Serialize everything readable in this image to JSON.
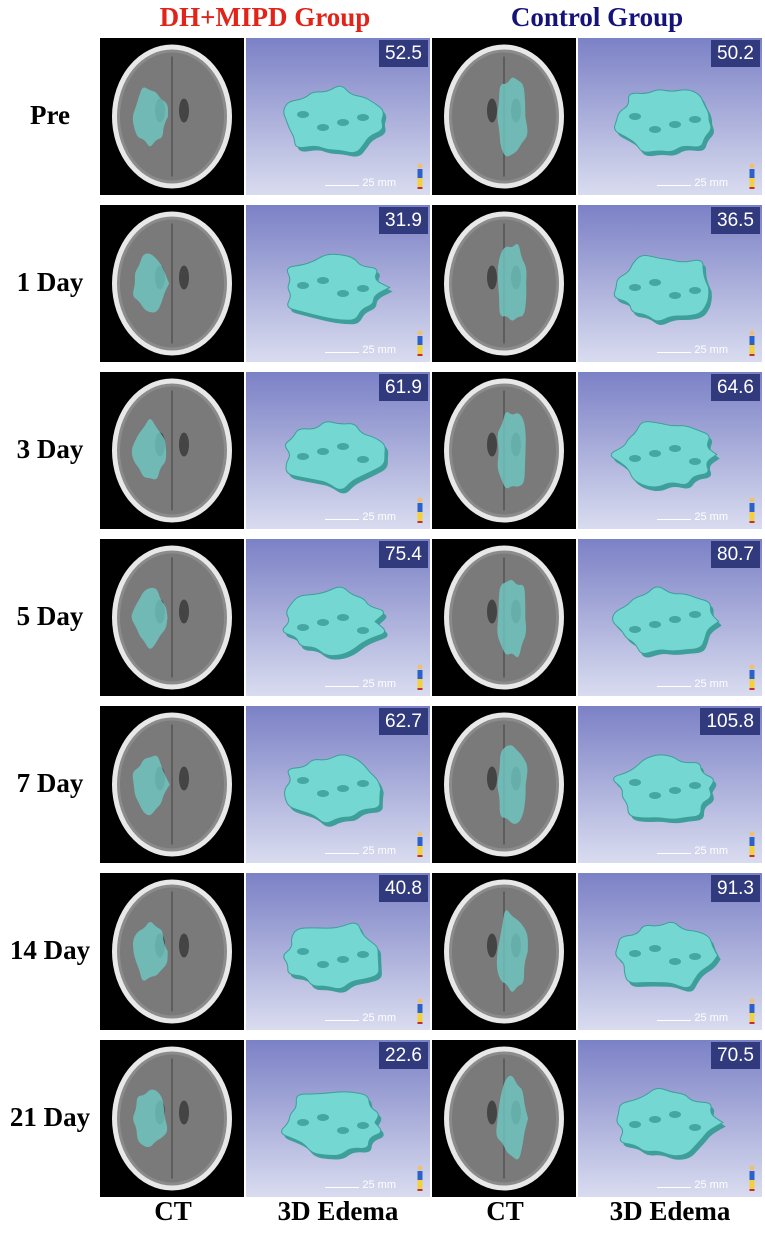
{
  "header": {
    "group_a": {
      "title": "DH+MIPD Group",
      "color": "#e2231a"
    },
    "group_b": {
      "title": "Control Group",
      "color": "#15137a"
    }
  },
  "footer": {
    "labels": [
      "CT",
      "3D Edema",
      "CT",
      "3D Edema"
    ]
  },
  "scale_label": "25 mm",
  "colors": {
    "edema": "#74d7d2",
    "edema_dark": "#3e9e9a",
    "edema_overlay": "#6fc9c4",
    "badge_bg": "#323a7e",
    "render_bg_top": "#7b81c6",
    "render_bg_bottom": "#d9dcef",
    "ct_background": "#000000"
  },
  "rows": [
    {
      "label": "Pre",
      "dh_volume": "52.5",
      "control_volume": "50.2"
    },
    {
      "label": "1 Day",
      "dh_volume": "31.9",
      "control_volume": "36.5"
    },
    {
      "label": "3 Day",
      "dh_volume": "61.9",
      "control_volume": "64.6"
    },
    {
      "label": "5 Day",
      "dh_volume": "75.4",
      "control_volume": "80.7"
    },
    {
      "label": "7 Day",
      "dh_volume": "62.7",
      "control_volume": "105.8"
    },
    {
      "label": "14 Day",
      "dh_volume": "40.8",
      "control_volume": "91.3"
    },
    {
      "label": "21 Day",
      "dh_volume": "22.6",
      "control_volume": "70.5"
    }
  ]
}
